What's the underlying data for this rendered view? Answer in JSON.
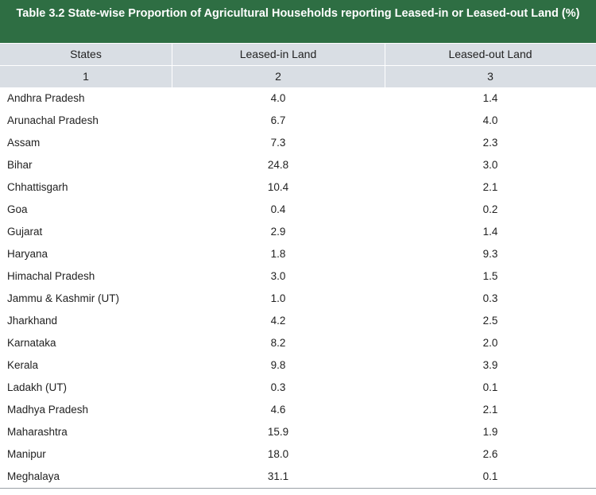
{
  "table": {
    "title": "Table 3.2 State-wise Proportion of Agricultural Households reporting Leased-in or Leased-out Land (%)",
    "headers": [
      "States",
      "Leased-in Land",
      "Leased-out Land"
    ],
    "column_numbers": [
      "1",
      "2",
      "3"
    ],
    "rows": [
      [
        "Andhra Pradesh",
        "4.0",
        "1.4"
      ],
      [
        "Arunachal Pradesh",
        "6.7",
        "4.0"
      ],
      [
        "Assam",
        "7.3",
        "2.3"
      ],
      [
        "Bihar",
        "24.8",
        "3.0"
      ],
      [
        "Chhattisgarh",
        "10.4",
        "2.1"
      ],
      [
        "Goa",
        "0.4",
        "0.2"
      ],
      [
        "Gujarat",
        "2.9",
        "1.4"
      ],
      [
        "Haryana",
        "1.8",
        "9.3"
      ],
      [
        "Himachal Pradesh",
        "3.0",
        "1.5"
      ],
      [
        "Jammu & Kashmir (UT)",
        "1.0",
        "0.3"
      ],
      [
        "Jharkhand",
        "4.2",
        "2.5"
      ],
      [
        "Karnataka",
        "8.2",
        "2.0"
      ],
      [
        "Kerala",
        "9.8",
        "3.9"
      ],
      [
        "Ladakh (UT)",
        "0.3",
        "0.1"
      ],
      [
        "Madhya Pradesh",
        "4.6",
        "2.1"
      ],
      [
        "Maharashtra",
        "15.9",
        "1.9"
      ],
      [
        "Manipur",
        "18.0",
        "2.6"
      ],
      [
        "Meghalaya",
        "31.1",
        "0.1"
      ]
    ]
  },
  "colors": {
    "title_bg": "#2e6e43",
    "header_bg": "#d9dee4"
  }
}
